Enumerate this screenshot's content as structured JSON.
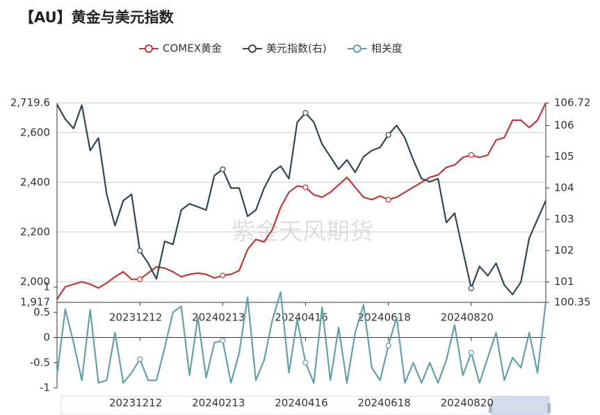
{
  "chart_data": [
    {
      "type": "line",
      "title": "【AU】黄金与美元指数",
      "watermark": "紫金天风期货",
      "categories": [
        null,
        null,
        null,
        null,
        null,
        null,
        null,
        null,
        null,
        null,
        "20231212",
        null,
        null,
        null,
        null,
        null,
        null,
        null,
        null,
        null,
        "20240213",
        null,
        null,
        null,
        null,
        null,
        null,
        null,
        null,
        null,
        "20240416",
        null,
        null,
        null,
        null,
        null,
        null,
        null,
        null,
        null,
        "20240618",
        null,
        null,
        null,
        null,
        null,
        null,
        null,
        null,
        null,
        "20240820",
        null,
        null,
        null,
        null,
        null,
        null,
        null,
        null,
        null
      ],
      "series": [
        {
          "name": "COMEX黄金",
          "color": "#c23531",
          "axis": "y",
          "values": [
            1930,
            1980,
            1990,
            2000,
            1990,
            1975,
            1995,
            2020,
            2040,
            2010,
            2010,
            2035,
            2060,
            2055,
            2040,
            2020,
            2030,
            2035,
            2030,
            2015,
            2025,
            2030,
            2045,
            2130,
            2170,
            2160,
            2210,
            2300,
            2360,
            2385,
            2380,
            2350,
            2340,
            2360,
            2390,
            2420,
            2380,
            2340,
            2330,
            2345,
            2330,
            2340,
            2360,
            2380,
            2400,
            2420,
            2430,
            2460,
            2470,
            2500,
            2510,
            2500,
            2510,
            2570,
            2580,
            2650,
            2650,
            2620,
            2650,
            2719.6
          ]
        },
        {
          "name": "美元指数(右)",
          "color": "#2f4554",
          "axis": "y2",
          "values": [
            106.67,
            106.2,
            105.9,
            106.65,
            105.2,
            105.6,
            103.8,
            102.8,
            103.6,
            103.8,
            102.0,
            101.6,
            101.1,
            102.3,
            102.2,
            103.3,
            103.5,
            103.4,
            103.3,
            104.4,
            104.6,
            104.0,
            104.0,
            103.1,
            103.3,
            104.0,
            104.5,
            104.7,
            104.3,
            106.1,
            106.4,
            106.1,
            105.4,
            105.0,
            104.6,
            104.9,
            104.5,
            105.0,
            105.2,
            105.3,
            105.7,
            106.0,
            105.6,
            104.9,
            104.3,
            104.2,
            104.3,
            102.9,
            103.2,
            102.0,
            100.8,
            101.5,
            101.2,
            101.6,
            100.9,
            100.6,
            101.0,
            102.4,
            103.0,
            103.6
          ]
        }
      ],
      "ylim": [
        1917,
        2719.6
      ],
      "yticks": [
        {
          "value": 1917,
          "label": "1,917"
        },
        {
          "value": 2000,
          "label": "2,000"
        },
        {
          "value": 2200,
          "label": "2,200"
        },
        {
          "value": 2400,
          "label": "2,400"
        },
        {
          "value": 2600,
          "label": "2,600"
        },
        {
          "value": 2719.6,
          "label": "2,719.6"
        }
      ],
      "y2lim": [
        100.35,
        106.72
      ],
      "y2ticks": [
        100.35,
        101,
        102,
        103,
        104,
        105,
        106,
        106.72
      ],
      "grid": true,
      "legend": "top"
    },
    {
      "type": "line",
      "categories": [
        null,
        null,
        null,
        null,
        null,
        null,
        null,
        null,
        null,
        null,
        "20231212",
        null,
        null,
        null,
        null,
        null,
        null,
        null,
        null,
        null,
        "20240213",
        null,
        null,
        null,
        null,
        null,
        null,
        null,
        null,
        null,
        "20240416",
        null,
        null,
        null,
        null,
        null,
        null,
        null,
        null,
        null,
        "20240618",
        null,
        null,
        null,
        null,
        null,
        null,
        null,
        null,
        null,
        "20240820",
        null,
        null,
        null,
        null,
        null,
        null,
        null,
        null,
        null
      ],
      "series": [
        {
          "name": "相关度",
          "color": "#61a0a8",
          "values": [
            -0.75,
            0.56,
            -0.1,
            -0.85,
            0.55,
            -0.9,
            -0.85,
            0.1,
            -0.9,
            -0.7,
            -0.43,
            -0.85,
            -0.85,
            -0.2,
            0.5,
            0.62,
            -0.75,
            0.4,
            -0.8,
            -0.1,
            -0.06,
            -0.9,
            -0.3,
            0.8,
            -0.85,
            -0.45,
            0.35,
            0.9,
            -0.7,
            0.35,
            -0.5,
            -0.9,
            0.6,
            -0.85,
            0.2,
            -0.9,
            0.1,
            0.65,
            -0.6,
            -0.85,
            -0.16,
            0.4,
            -0.9,
            -0.5,
            -0.9,
            -0.5,
            -0.9,
            -0.45,
            0.25,
            -0.75,
            -0.3,
            -0.9,
            -0.4,
            0.1,
            -0.85,
            -0.4,
            -0.6,
            0.1,
            -0.7,
            0.7
          ]
        }
      ],
      "ylim": [
        -1,
        1
      ],
      "yticks": [
        -1,
        -0.5,
        0,
        0.5,
        1
      ]
    }
  ]
}
